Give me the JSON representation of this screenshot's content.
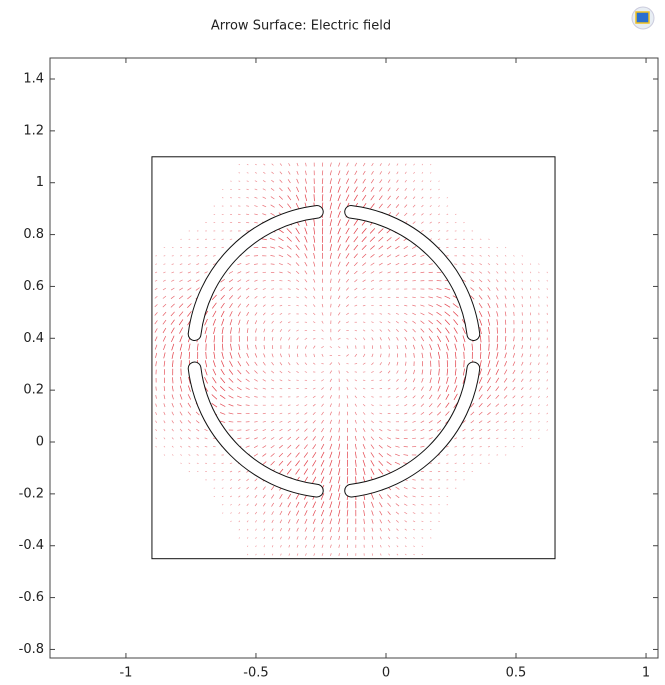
{
  "chart_data": {
    "type": "arrow-surface",
    "title": "Arrow Surface: Electric field",
    "xlim": [
      -1.292,
      1.046
    ],
    "ylim": [
      -0.833,
      1.481
    ],
    "xticks": [
      -1,
      -0.5,
      0,
      0.5,
      1
    ],
    "yticks": [
      -0.8,
      -0.6,
      -0.4,
      -0.2,
      0,
      0.2,
      0.4,
      0.6,
      0.8,
      1,
      1.2,
      1.4
    ],
    "arrow_color": "#e0303a",
    "geometry": {
      "rectangle": [
        -0.9,
        -0.45,
        0.65,
        1.1
      ],
      "ring": {
        "center": [
          -0.2,
          0.35
        ],
        "radius": 0.54,
        "width": 0.045,
        "gap_degrees": 14
      }
    }
  }
}
